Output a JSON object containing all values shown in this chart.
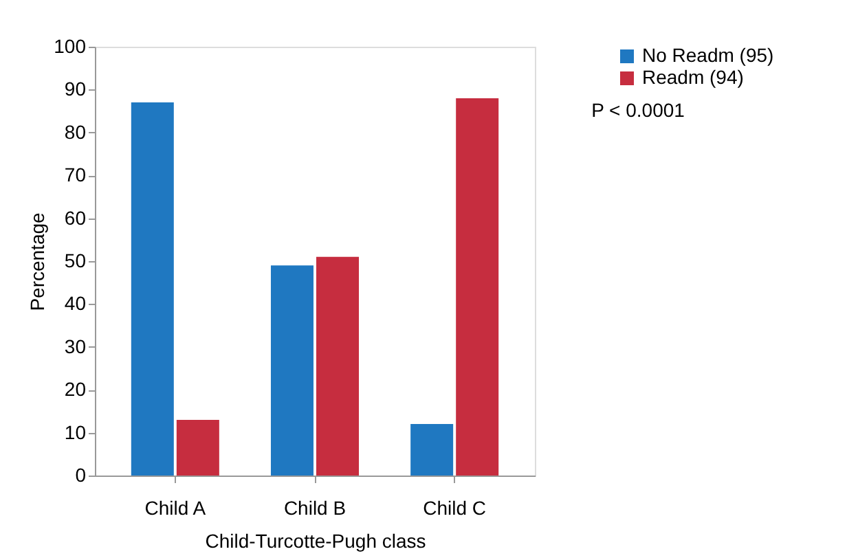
{
  "chart_data": {
    "type": "bar",
    "xlabel": "Child-Turcotte-Pugh class",
    "ylabel": "Percentage",
    "categories": [
      "Child A",
      "Child B",
      "Child C"
    ],
    "series": [
      {
        "name": "No Readm (95)",
        "color": "#1f78c1",
        "values": [
          87,
          49,
          12
        ]
      },
      {
        "name": "Readm (94)",
        "color": "#c62d3f",
        "values": [
          13,
          51,
          88
        ]
      }
    ],
    "ylim": [
      0,
      100
    ],
    "yticks": [
      0,
      10,
      20,
      30,
      40,
      50,
      60,
      70,
      80,
      90,
      100
    ],
    "grid": false,
    "legend": "right",
    "annotations": [
      "P < 0.0001"
    ]
  }
}
